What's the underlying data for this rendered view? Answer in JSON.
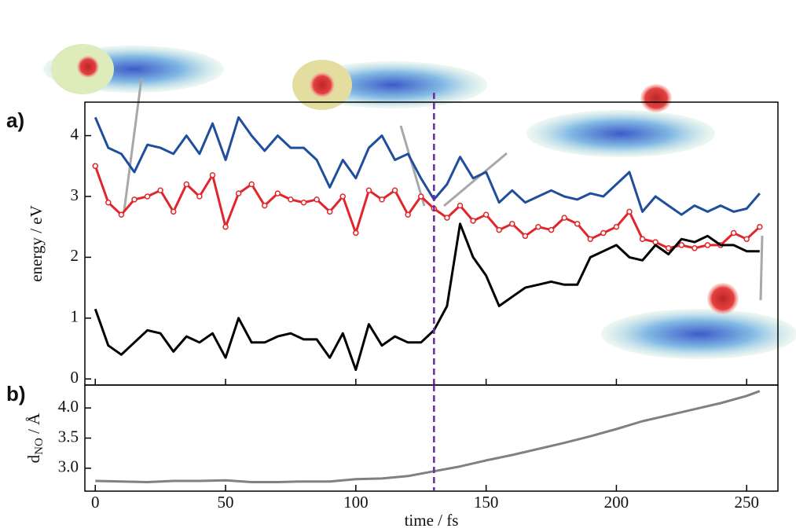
{
  "chart_data": [
    {
      "type": "line",
      "panel_label": "a)",
      "ylabel": "energy / eV",
      "x": [
        0,
        5,
        10,
        15,
        20,
        25,
        30,
        35,
        40,
        45,
        50,
        55,
        60,
        65,
        70,
        75,
        80,
        85,
        90,
        95,
        100,
        105,
        110,
        115,
        120,
        125,
        130,
        135,
        140,
        145,
        150,
        155,
        160,
        165,
        170,
        175,
        180,
        185,
        190,
        195,
        200,
        205,
        210,
        215,
        220,
        225,
        230,
        235,
        240,
        245,
        250,
        255
      ],
      "series": [
        {
          "color": "#1f4e9c",
          "markers": false,
          "values": [
            4.3,
            3.8,
            3.7,
            3.4,
            3.85,
            3.8,
            3.7,
            4.0,
            3.7,
            4.2,
            3.6,
            4.3,
            4.0,
            3.75,
            4.0,
            3.8,
            3.8,
            3.6,
            3.15,
            3.6,
            3.3,
            3.8,
            4.0,
            3.6,
            3.7,
            3.3,
            2.95,
            3.2,
            3.65,
            3.3,
            3.4,
            2.9,
            3.1,
            2.9,
            3.0,
            3.1,
            3.0,
            2.95,
            3.05,
            3.0,
            3.2,
            3.4,
            2.75,
            3.0,
            2.85,
            2.7,
            2.85,
            2.75,
            2.85,
            2.75,
            2.8,
            3.05
          ]
        },
        {
          "color": "#e0262b",
          "markers": true,
          "values": [
            3.5,
            2.9,
            2.7,
            2.95,
            3.0,
            3.1,
            2.75,
            3.2,
            3.0,
            3.35,
            2.5,
            3.05,
            3.2,
            2.85,
            3.05,
            2.95,
            2.9,
            2.95,
            2.75,
            3.0,
            2.4,
            3.1,
            2.95,
            3.1,
            2.7,
            3.0,
            2.8,
            2.65,
            2.85,
            2.6,
            2.7,
            2.45,
            2.55,
            2.35,
            2.5,
            2.45,
            2.65,
            2.55,
            2.3,
            2.4,
            2.5,
            2.75,
            2.3,
            2.25,
            2.15,
            2.2,
            2.15,
            2.2,
            2.2,
            2.4,
            2.3,
            2.5
          ]
        },
        {
          "color": "#000000",
          "markers": false,
          "values": [
            1.15,
            0.55,
            0.4,
            0.6,
            0.8,
            0.75,
            0.45,
            0.7,
            0.6,
            0.75,
            0.35,
            1.0,
            0.6,
            0.6,
            0.7,
            0.75,
            0.65,
            0.65,
            0.35,
            0.75,
            0.15,
            0.9,
            0.55,
            0.7,
            0.6,
            0.6,
            0.8,
            1.2,
            2.55,
            2.0,
            1.7,
            1.2,
            1.35,
            1.5,
            1.55,
            1.6,
            1.55,
            1.55,
            2.0,
            2.1,
            2.2,
            2.0,
            1.95,
            2.2,
            2.05,
            2.3,
            2.25,
            2.35,
            2.2,
            2.2,
            2.1,
            2.1
          ]
        }
      ],
      "xlim": [
        -4,
        262
      ],
      "xticks": [
        0,
        50,
        100,
        150,
        200,
        250
      ],
      "ylim": [
        -0.1,
        4.55
      ],
      "yticks": [
        0,
        1,
        2,
        3,
        4
      ],
      "vline": 130,
      "vline_color": "#6a2aa0"
    },
    {
      "type": "line",
      "panel_label": "b)",
      "ylabel": {
        "main": "d",
        "sub": "NO",
        "rest": " / Å"
      },
      "xlabel": "time / fs",
      "x": [
        0,
        10,
        20,
        30,
        40,
        50,
        60,
        70,
        80,
        90,
        100,
        110,
        120,
        130,
        140,
        150,
        160,
        170,
        180,
        190,
        200,
        210,
        220,
        230,
        240,
        250,
        255
      ],
      "series": [
        {
          "color": "#808080",
          "markers": false,
          "values": [
            2.79,
            2.78,
            2.77,
            2.79,
            2.79,
            2.8,
            2.77,
            2.77,
            2.78,
            2.78,
            2.82,
            2.83,
            2.87,
            2.95,
            3.03,
            3.13,
            3.22,
            3.32,
            3.42,
            3.53,
            3.65,
            3.78,
            3.88,
            3.98,
            4.08,
            4.2,
            4.28
          ]
        }
      ],
      "xlim": [
        -4,
        262
      ],
      "xticks": [
        0,
        50,
        100,
        150,
        200,
        250
      ],
      "ylim": [
        2.62,
        4.38
      ],
      "yticks": [
        {
          "value": 3.0,
          "label": "3.0"
        },
        {
          "value": 3.5,
          "label": "3.5"
        },
        {
          "value": 4.0,
          "label": "4.0"
        }
      ],
      "vline": 130,
      "vline_color": "#6a2aa0"
    }
  ]
}
